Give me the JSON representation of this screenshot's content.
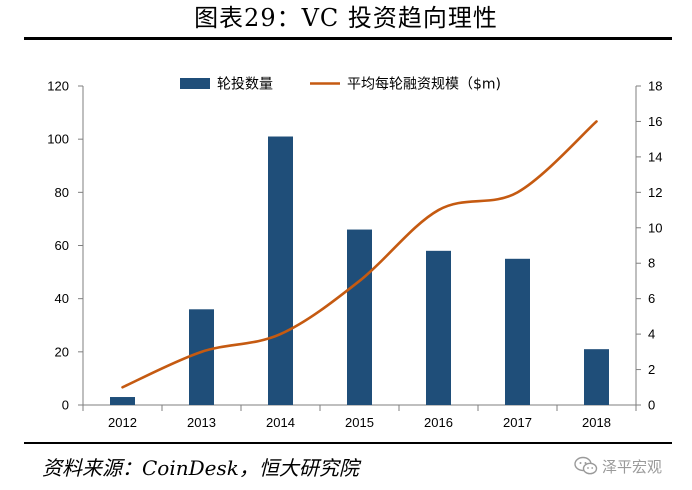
{
  "header": {
    "title": "图表29：VC 投资趋向理性"
  },
  "chart_data": {
    "type": "bar",
    "title": "",
    "categories": [
      "2012",
      "2013",
      "2014",
      "2015",
      "2016",
      "2017",
      "2018"
    ],
    "series": [
      {
        "name": "轮投数量",
        "type": "bar",
        "axis": "left",
        "color": "#1f4e79",
        "values": [
          3,
          36,
          101,
          66,
          58,
          55,
          21
        ]
      },
      {
        "name": "平均每轮融资规模（$m)",
        "type": "line",
        "axis": "right",
        "color": "#c55a11",
        "values": [
          1,
          3,
          4,
          7,
          11,
          12,
          16
        ]
      }
    ],
    "ylim_left": [
      0,
      120
    ],
    "yticks_left": [
      "0",
      "20",
      "40",
      "60",
      "80",
      "100",
      "120"
    ],
    "ylim_right": [
      0,
      18
    ],
    "yticks_right": [
      "0",
      "2",
      "4",
      "6",
      "8",
      "10",
      "12",
      "14",
      "16",
      "18"
    ],
    "grid": false,
    "legend": "top-center"
  },
  "footer": {
    "source": "资料来源：CoinDesk，恒大研究院",
    "watermark": "泽平宏观",
    "watermark_icon": "wechat-icon"
  }
}
